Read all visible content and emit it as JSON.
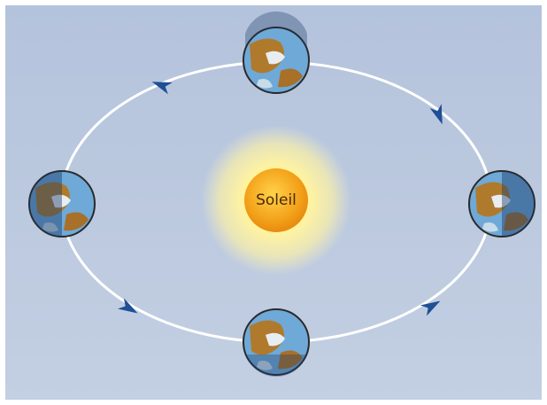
{
  "sun": {
    "label": "Soleil"
  }
}
